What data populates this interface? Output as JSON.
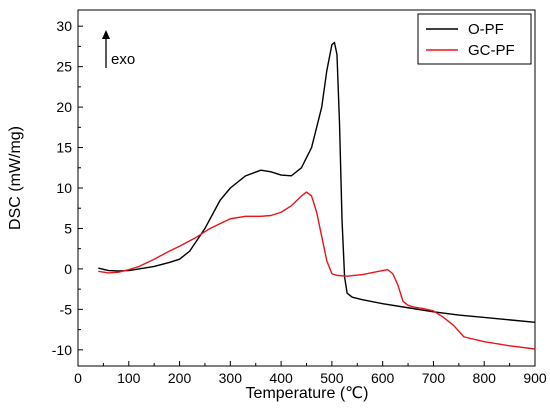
{
  "chart_data": {
    "type": "line",
    "xlabel": "Temperature (℃)",
    "ylabel": "DSC (mW/mg)",
    "xlim": [
      0,
      900
    ],
    "ylim": [
      -12,
      32
    ],
    "xticks": [
      0,
      100,
      200,
      300,
      400,
      500,
      600,
      700,
      800,
      900
    ],
    "yticks": [
      -10,
      -5,
      0,
      5,
      10,
      15,
      20,
      25,
      30
    ],
    "grid": false,
    "legend_position": "top-right",
    "annotation": "exo",
    "colors": {
      "O-PF": "#000000",
      "GC-PF": "#e8141c"
    },
    "series": [
      {
        "name": "O-PF",
        "color": "#000000",
        "x": [
          40,
          60,
          80,
          100,
          120,
          150,
          180,
          200,
          220,
          250,
          280,
          300,
          330,
          360,
          380,
          400,
          420,
          440,
          460,
          480,
          490,
          500,
          505,
          510,
          515,
          520,
          525,
          530,
          540,
          560,
          600,
          650,
          700,
          750,
          800,
          850,
          900
        ],
        "y": [
          0.1,
          -0.2,
          -0.25,
          -0.2,
          0.0,
          0.3,
          0.8,
          1.2,
          2.2,
          5.0,
          8.5,
          10.0,
          11.5,
          12.2,
          12.0,
          11.6,
          11.5,
          12.5,
          15.0,
          20.0,
          24.5,
          27.7,
          28.0,
          26.5,
          18.0,
          6.0,
          -1.0,
          -3.0,
          -3.5,
          -3.8,
          -4.3,
          -4.8,
          -5.3,
          -5.7,
          -6.0,
          -6.3,
          -6.6
        ]
      },
      {
        "name": "GC-PF",
        "color": "#e8141c",
        "x": [
          40,
          60,
          80,
          100,
          120,
          150,
          180,
          200,
          230,
          260,
          300,
          330,
          360,
          380,
          400,
          420,
          440,
          450,
          460,
          470,
          480,
          490,
          500,
          510,
          530,
          560,
          600,
          610,
          620,
          630,
          640,
          650,
          660,
          680,
          700,
          720,
          740,
          760,
          800,
          850,
          900
        ],
        "y": [
          -0.3,
          -0.5,
          -0.4,
          -0.1,
          0.3,
          1.2,
          2.2,
          2.8,
          3.8,
          5.0,
          6.2,
          6.5,
          6.5,
          6.6,
          7.0,
          7.8,
          9.0,
          9.5,
          9.0,
          7.0,
          4.0,
          1.0,
          -0.6,
          -0.8,
          -0.9,
          -0.7,
          -0.2,
          -0.1,
          -0.6,
          -2.0,
          -4.0,
          -4.5,
          -4.7,
          -4.9,
          -5.2,
          -6.0,
          -7.0,
          -8.4,
          -9.0,
          -9.5,
          -9.9
        ]
      }
    ]
  }
}
